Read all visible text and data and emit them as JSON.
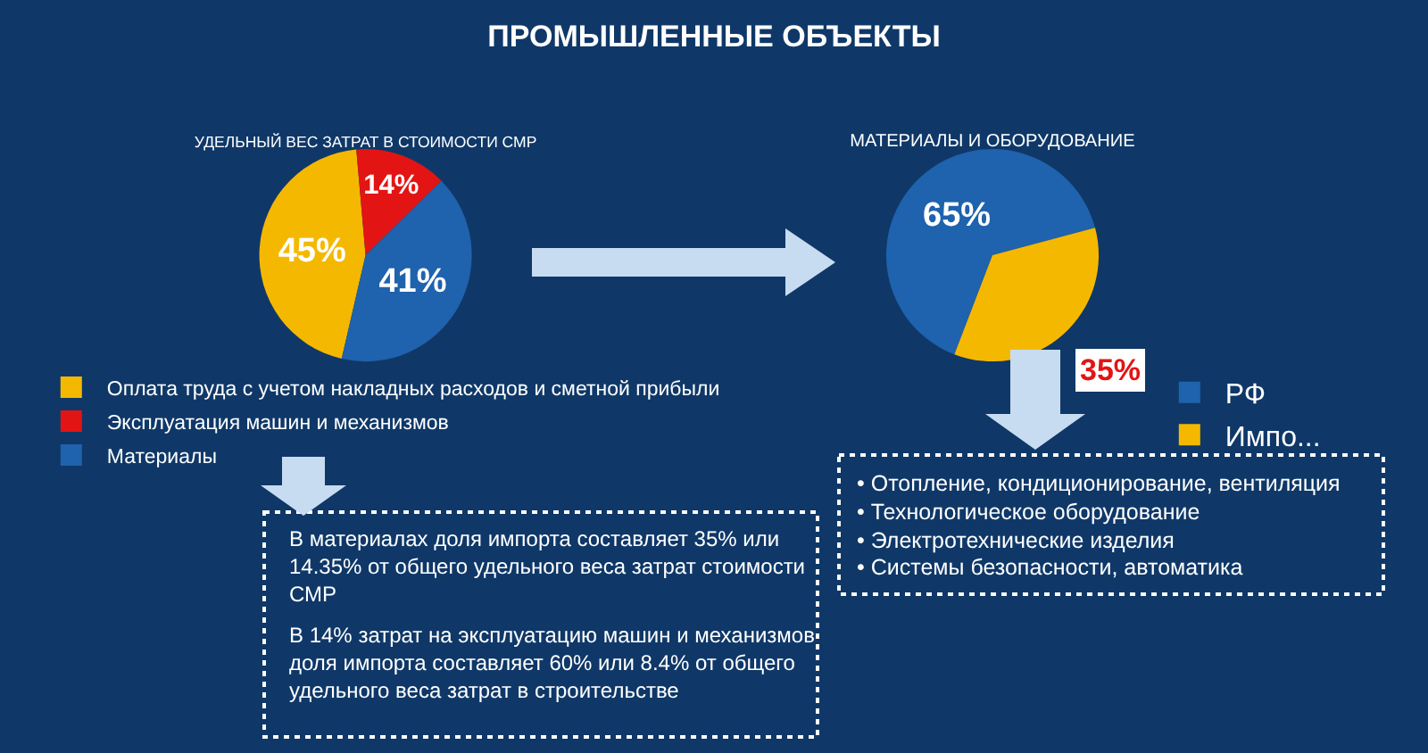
{
  "chart_data": [
    {
      "type": "pie",
      "title": "ПРОМЫШЛЕННЫЕ ОБЪЕКТЫ",
      "subtitle": "УДЕЛЬНЫЙ ВЕС ЗАТРАТ В СТОИМОСТИ СМР",
      "categories": [
        "Оплата труда с учетом накладных расходов и сметной прибыли",
        "Эксплуатация машин и механизмов",
        "Материалы"
      ],
      "values": [
        45,
        14,
        41
      ],
      "colors": [
        "#f5b800",
        "#e31414",
        "#1f62ad"
      ],
      "value_labels": [
        "45%",
        "14%",
        "41%"
      ],
      "legend": "bottom",
      "annotations": [
        "В материалах доля импорта составляет 35% или 14.35% от общего удельного веса затрат стоимости СМР",
        "В 14% затрат на эксплуатацию машин и механизмов доля импорта составляет 60% или 8.4% от общего удельного веса затрат в строительстве"
      ]
    },
    {
      "type": "pie",
      "title": "МАТЕРИАЛЫ И ОБОРУДОВАНИЕ",
      "categories": [
        "РФ",
        "Импо..."
      ],
      "values": [
        65,
        35
      ],
      "colors": [
        "#1f62ad",
        "#f5b800"
      ],
      "value_labels": [
        "65%",
        null
      ],
      "legend": "bottom right",
      "annotations": [
        {
          "text": "35%",
          "x": "Импо..."
        },
        "• Отопление, кондиционирование, вентиляция",
        "• Технологическое оборудование",
        "• Электротехнические изделия",
        "• Системы безопасности, автоматика"
      ]
    }
  ]
}
